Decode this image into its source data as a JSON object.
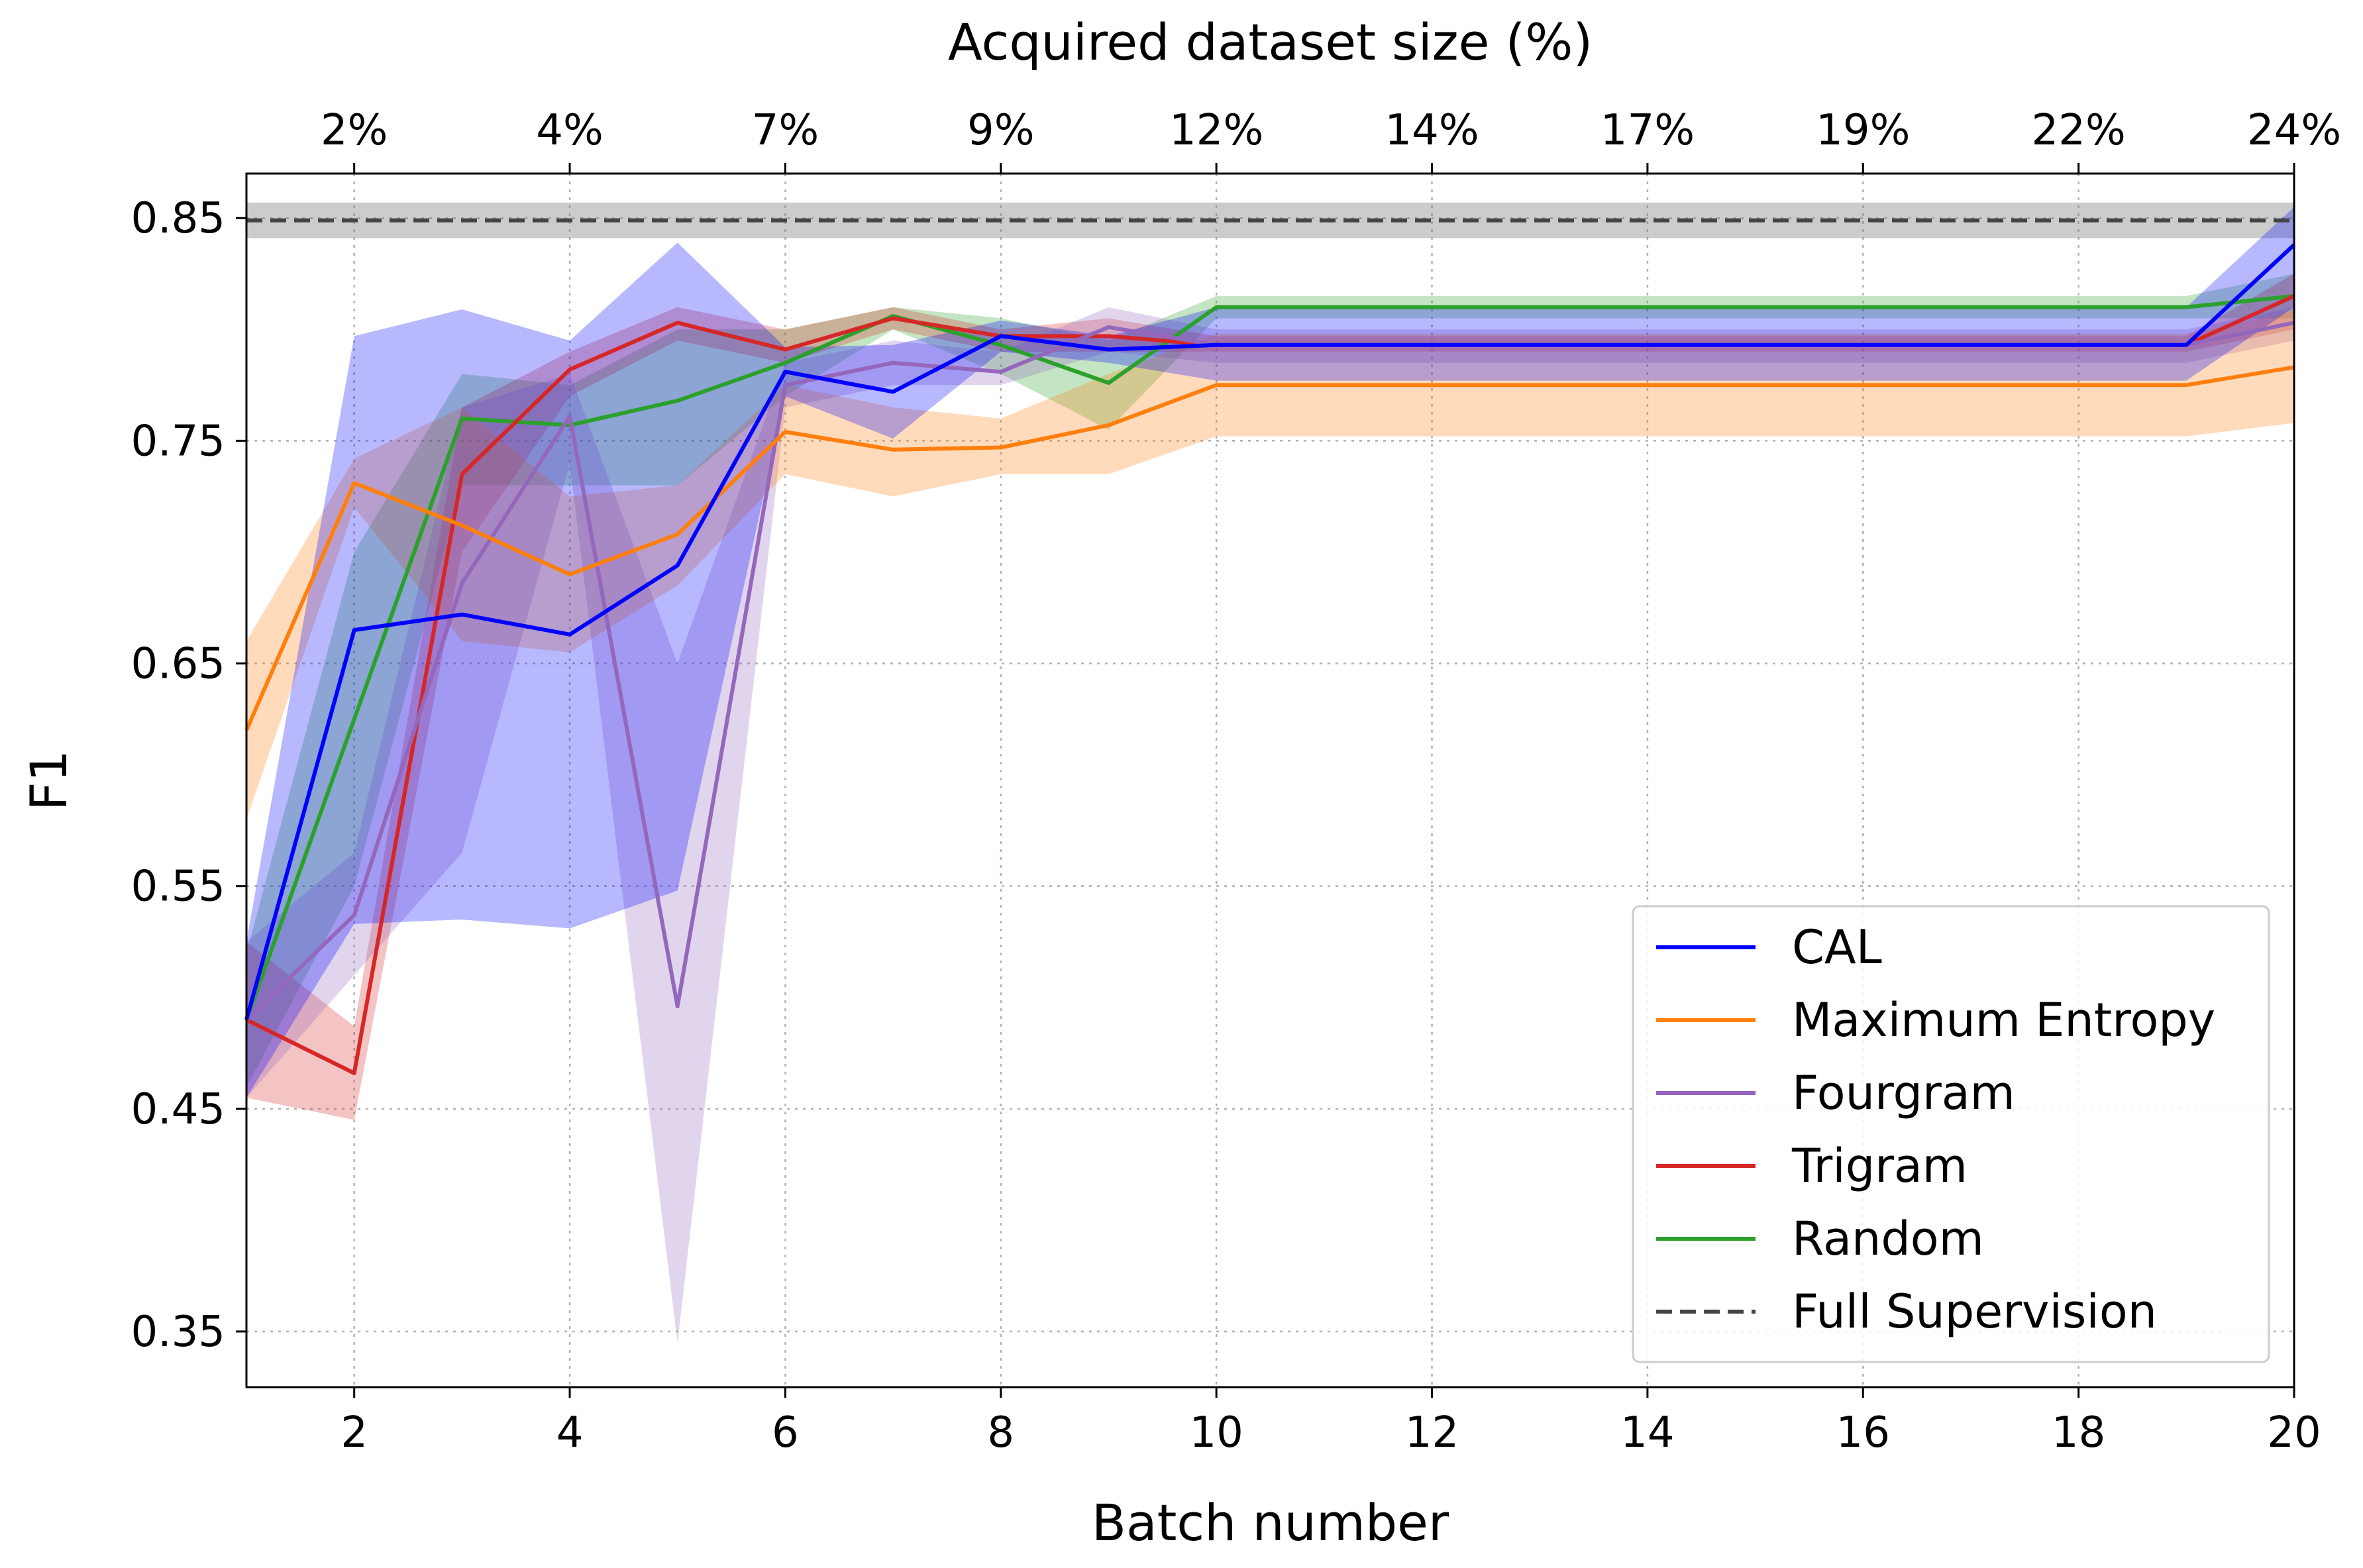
{
  "chart_data": {
    "type": "line",
    "xlabel": "Batch number",
    "ylabel": "F1",
    "top_xlabel": "Acquired dataset size (%)",
    "xlim": [
      1,
      20
    ],
    "ylim": [
      0.325,
      0.87
    ],
    "x_ticks": [
      2,
      4,
      6,
      8,
      10,
      12,
      14,
      16,
      18,
      20
    ],
    "y_ticks": [
      0.35,
      0.45,
      0.55,
      0.65,
      0.75,
      0.85
    ],
    "y_tick_labels": [
      "0.35",
      "0.45",
      "0.55",
      "0.65",
      "0.75",
      "0.85"
    ],
    "top_ticks": [
      {
        "x": 2,
        "label": "2%"
      },
      {
        "x": 4,
        "label": "4%"
      },
      {
        "x": 6,
        "label": "7%"
      },
      {
        "x": 8,
        "label": "9%"
      },
      {
        "x": 10,
        "label": "12%"
      },
      {
        "x": 12,
        "label": "14%"
      },
      {
        "x": 14,
        "label": "17%"
      },
      {
        "x": 16,
        "label": "19%"
      },
      {
        "x": 18,
        "label": "22%"
      },
      {
        "x": 20,
        "label": "24%"
      }
    ],
    "grid": true,
    "legend_position": "lower-right",
    "x": [
      1,
      2,
      3,
      4,
      5,
      6,
      7,
      8,
      9,
      10,
      11,
      12,
      13,
      14,
      15,
      16,
      17,
      18,
      19,
      20
    ],
    "series": [
      {
        "name": "Random",
        "color": "#2ca02c",
        "mean": [
          0.49,
          0.625,
          0.76,
          0.757,
          0.768,
          0.785,
          0.806,
          0.793,
          0.776,
          0.81,
          0.81,
          0.81,
          0.81,
          0.81,
          0.81,
          0.81,
          0.81,
          0.81,
          0.81,
          0.815
        ],
        "lower": [
          0.46,
          0.55,
          0.73,
          0.73,
          0.73,
          0.77,
          0.8,
          0.78,
          0.755,
          0.805,
          0.805,
          0.805,
          0.805,
          0.805,
          0.805,
          0.805,
          0.805,
          0.805,
          0.805,
          0.805
        ],
        "upper": [
          0.52,
          0.7,
          0.78,
          0.775,
          0.8,
          0.8,
          0.81,
          0.805,
          0.795,
          0.815,
          0.815,
          0.815,
          0.815,
          0.815,
          0.815,
          0.815,
          0.815,
          0.815,
          0.815,
          0.825
        ]
      },
      {
        "name": "Trigram",
        "color": "#d62728",
        "mean": [
          0.49,
          0.466,
          0.735,
          0.782,
          0.803,
          0.791,
          0.805,
          0.797,
          0.797,
          0.793,
          0.793,
          0.793,
          0.793,
          0.793,
          0.793,
          0.793,
          0.793,
          0.793,
          0.793,
          0.815
        ],
        "lower": [
          0.455,
          0.445,
          0.7,
          0.77,
          0.795,
          0.785,
          0.8,
          0.79,
          0.79,
          0.79,
          0.79,
          0.79,
          0.79,
          0.79,
          0.79,
          0.79,
          0.79,
          0.79,
          0.79,
          0.8
        ],
        "upper": [
          0.525,
          0.487,
          0.765,
          0.79,
          0.81,
          0.8,
          0.81,
          0.8,
          0.805,
          0.797,
          0.797,
          0.797,
          0.797,
          0.797,
          0.797,
          0.797,
          0.797,
          0.797,
          0.797,
          0.825
        ]
      },
      {
        "name": "Fourgram",
        "color": "#9467bd",
        "mean": [
          0.49,
          0.537,
          0.686,
          0.761,
          0.496,
          0.775,
          0.785,
          0.781,
          0.801,
          0.793,
          0.793,
          0.793,
          0.793,
          0.793,
          0.793,
          0.793,
          0.793,
          0.793,
          0.793,
          0.803
        ],
        "lower": [
          0.455,
          0.51,
          0.565,
          0.74,
          0.345,
          0.765,
          0.775,
          0.775,
          0.79,
          0.785,
          0.785,
          0.785,
          0.785,
          0.785,
          0.785,
          0.785,
          0.785,
          0.785,
          0.785,
          0.795
        ],
        "upper": [
          0.525,
          0.565,
          0.765,
          0.78,
          0.65,
          0.785,
          0.795,
          0.79,
          0.81,
          0.8,
          0.8,
          0.8,
          0.8,
          0.8,
          0.8,
          0.8,
          0.8,
          0.8,
          0.8,
          0.81
        ]
      },
      {
        "name": "Maximum Entropy",
        "color": "#ff7f0e",
        "mean": [
          0.62,
          0.731,
          0.712,
          0.69,
          0.708,
          0.754,
          0.746,
          0.747,
          0.757,
          0.775,
          0.775,
          0.775,
          0.775,
          0.775,
          0.775,
          0.775,
          0.775,
          0.775,
          0.775,
          0.783
        ],
        "lower": [
          0.58,
          0.72,
          0.66,
          0.655,
          0.685,
          0.735,
          0.725,
          0.735,
          0.735,
          0.752,
          0.752,
          0.752,
          0.752,
          0.752,
          0.752,
          0.752,
          0.752,
          0.752,
          0.752,
          0.758
        ],
        "upper": [
          0.66,
          0.742,
          0.765,
          0.725,
          0.73,
          0.775,
          0.765,
          0.76,
          0.78,
          0.798,
          0.798,
          0.798,
          0.798,
          0.798,
          0.798,
          0.798,
          0.798,
          0.798,
          0.798,
          0.808
        ]
      },
      {
        "name": "CAL",
        "color": "#0000ff",
        "mean": [
          0.49,
          0.665,
          0.672,
          0.663,
          0.694,
          0.781,
          0.772,
          0.797,
          0.791,
          0.793,
          0.793,
          0.793,
          0.793,
          0.793,
          0.793,
          0.793,
          0.793,
          0.793,
          0.793,
          0.838
        ],
        "lower": [
          0.455,
          0.533,
          0.535,
          0.531,
          0.548,
          0.77,
          0.751,
          0.79,
          0.785,
          0.777,
          0.777,
          0.777,
          0.777,
          0.777,
          0.777,
          0.777,
          0.777,
          0.777,
          0.777,
          0.81
        ],
        "upper": [
          0.525,
          0.797,
          0.809,
          0.795,
          0.839,
          0.792,
          0.793,
          0.804,
          0.797,
          0.81,
          0.81,
          0.81,
          0.81,
          0.81,
          0.81,
          0.81,
          0.81,
          0.81,
          0.81,
          0.855
        ]
      }
    ],
    "reference": {
      "name": "Full Supervision",
      "color": "#444444",
      "value": 0.849,
      "band": [
        0.841,
        0.857
      ]
    },
    "legend_entries": [
      {
        "label": "CAL",
        "color": "#0000ff",
        "style": "solid"
      },
      {
        "label": "Maximum Entropy",
        "color": "#ff7f0e",
        "style": "solid"
      },
      {
        "label": "Fourgram",
        "color": "#9467bd",
        "style": "solid"
      },
      {
        "label": "Trigram",
        "color": "#d62728",
        "style": "solid"
      },
      {
        "label": "Random",
        "color": "#2ca02c",
        "style": "solid"
      },
      {
        "label": "Full Supervision",
        "color": "#444444",
        "style": "dashed"
      }
    ]
  }
}
